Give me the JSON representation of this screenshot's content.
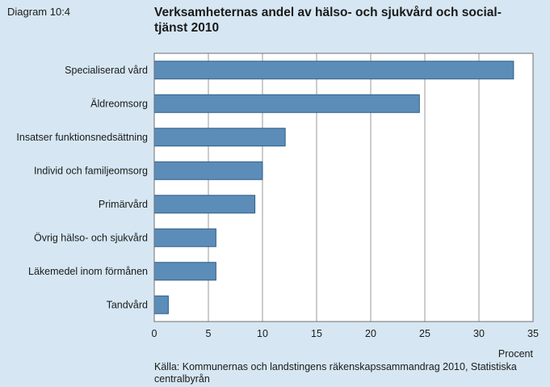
{
  "diagram_id": "Diagram 10:4",
  "source": "Källa: Kommunernas och landstingens räkenskapssammandrag 2010, Statistiska centralbyrån",
  "colors": {
    "background": "#d6e7f3",
    "plot_background": "#ffffff",
    "bar_fill": "#5b8db8",
    "bar_stroke": "#2f5f87",
    "grid": "#9a9a9a"
  },
  "chart_data": {
    "type": "bar",
    "orientation": "horizontal",
    "title": "Verksamheternas andel av hälso- och sjukvård och social-tjänst 2010",
    "xlabel": "Procent",
    "ylabel": "",
    "categories": [
      "Specialiserad vård",
      "Äldreomsorg",
      "Insatser funktionsnedsättning",
      "Individ och familjeomsorg",
      "Primärvård",
      "Övrig hälso- och sjukvård",
      "Läkemedel inom förmånen",
      "Tandvård"
    ],
    "values": [
      33.2,
      24.5,
      12.1,
      10.0,
      9.3,
      5.7,
      5.7,
      1.3
    ],
    "xlim": [
      0,
      35
    ],
    "xticks": [
      0,
      5,
      10,
      15,
      20,
      25,
      30,
      35
    ],
    "grid": true,
    "legend": "none"
  }
}
